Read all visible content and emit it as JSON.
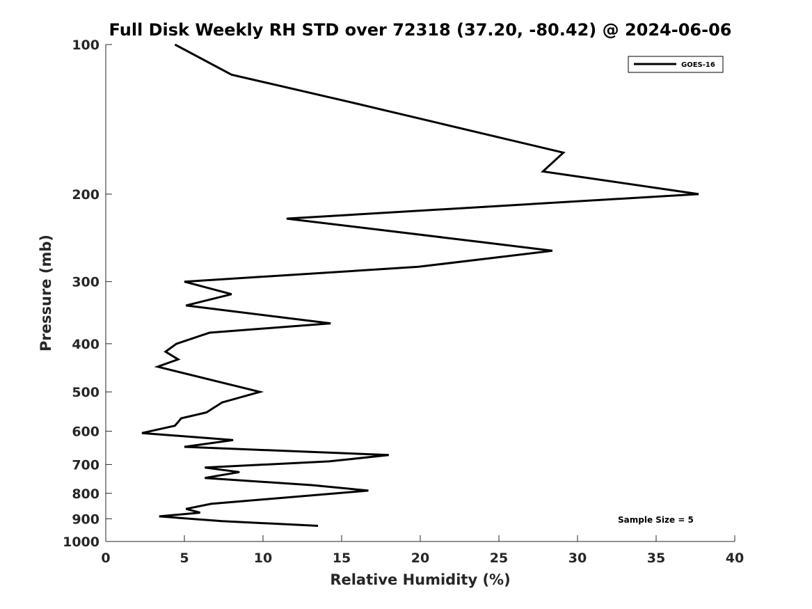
{
  "chart_data": {
    "type": "line",
    "title": "Full Disk Weekly RH STD over 72318 (37.20, -80.42) @ 2024-06-06",
    "xlabel": "Relative Humidity (%)",
    "ylabel": "Pressure (mb)",
    "xlim": [
      0,
      40
    ],
    "ylim": [
      1000,
      100
    ],
    "yscale": "log",
    "reversed_y": true,
    "grid": false,
    "legend_position": "top-right",
    "x_ticks": [
      0,
      5,
      10,
      15,
      20,
      25,
      30,
      35,
      40
    ],
    "y_ticks": [
      100,
      200,
      300,
      400,
      500,
      600,
      700,
      800,
      900,
      1000
    ],
    "x_tick_labels": [
      "0",
      "5",
      "10",
      "15",
      "20",
      "25",
      "30",
      "35",
      "40"
    ],
    "y_tick_labels": [
      "100",
      "200",
      "300",
      "400",
      "500",
      "600",
      "700",
      "800",
      "900",
      "1000"
    ],
    "annotation": "Sample Size = 5",
    "line_color": "#000000",
    "series": [
      {
        "name": "GOES-16",
        "x": [
          4.4,
          8.0,
          15.3,
          29.1,
          27.8,
          37.7,
          11.5,
          24.0,
          28.4,
          19.9,
          5.0,
          8.0,
          5.1,
          14.3,
          6.6,
          4.5,
          3.8,
          4.6,
          3.3,
          9.8,
          7.4,
          6.4,
          4.8,
          4.4,
          2.3,
          8.1,
          5.0,
          18.0,
          14.2,
          6.3,
          8.5,
          6.3,
          13.1,
          16.7,
          6.7,
          5.1,
          6.0,
          3.4,
          7.4,
          13.5
        ],
        "y": [
          100,
          115,
          130,
          165,
          180,
          200,
          224,
          250,
          260,
          280,
          300,
          318,
          335,
          364,
          380,
          400,
          415,
          430,
          445,
          500,
          525,
          550,
          565,
          585,
          605,
          625,
          645,
          670,
          690,
          710,
          725,
          745,
          770,
          790,
          840,
          860,
          875,
          890,
          910,
          930
        ]
      }
    ]
  }
}
